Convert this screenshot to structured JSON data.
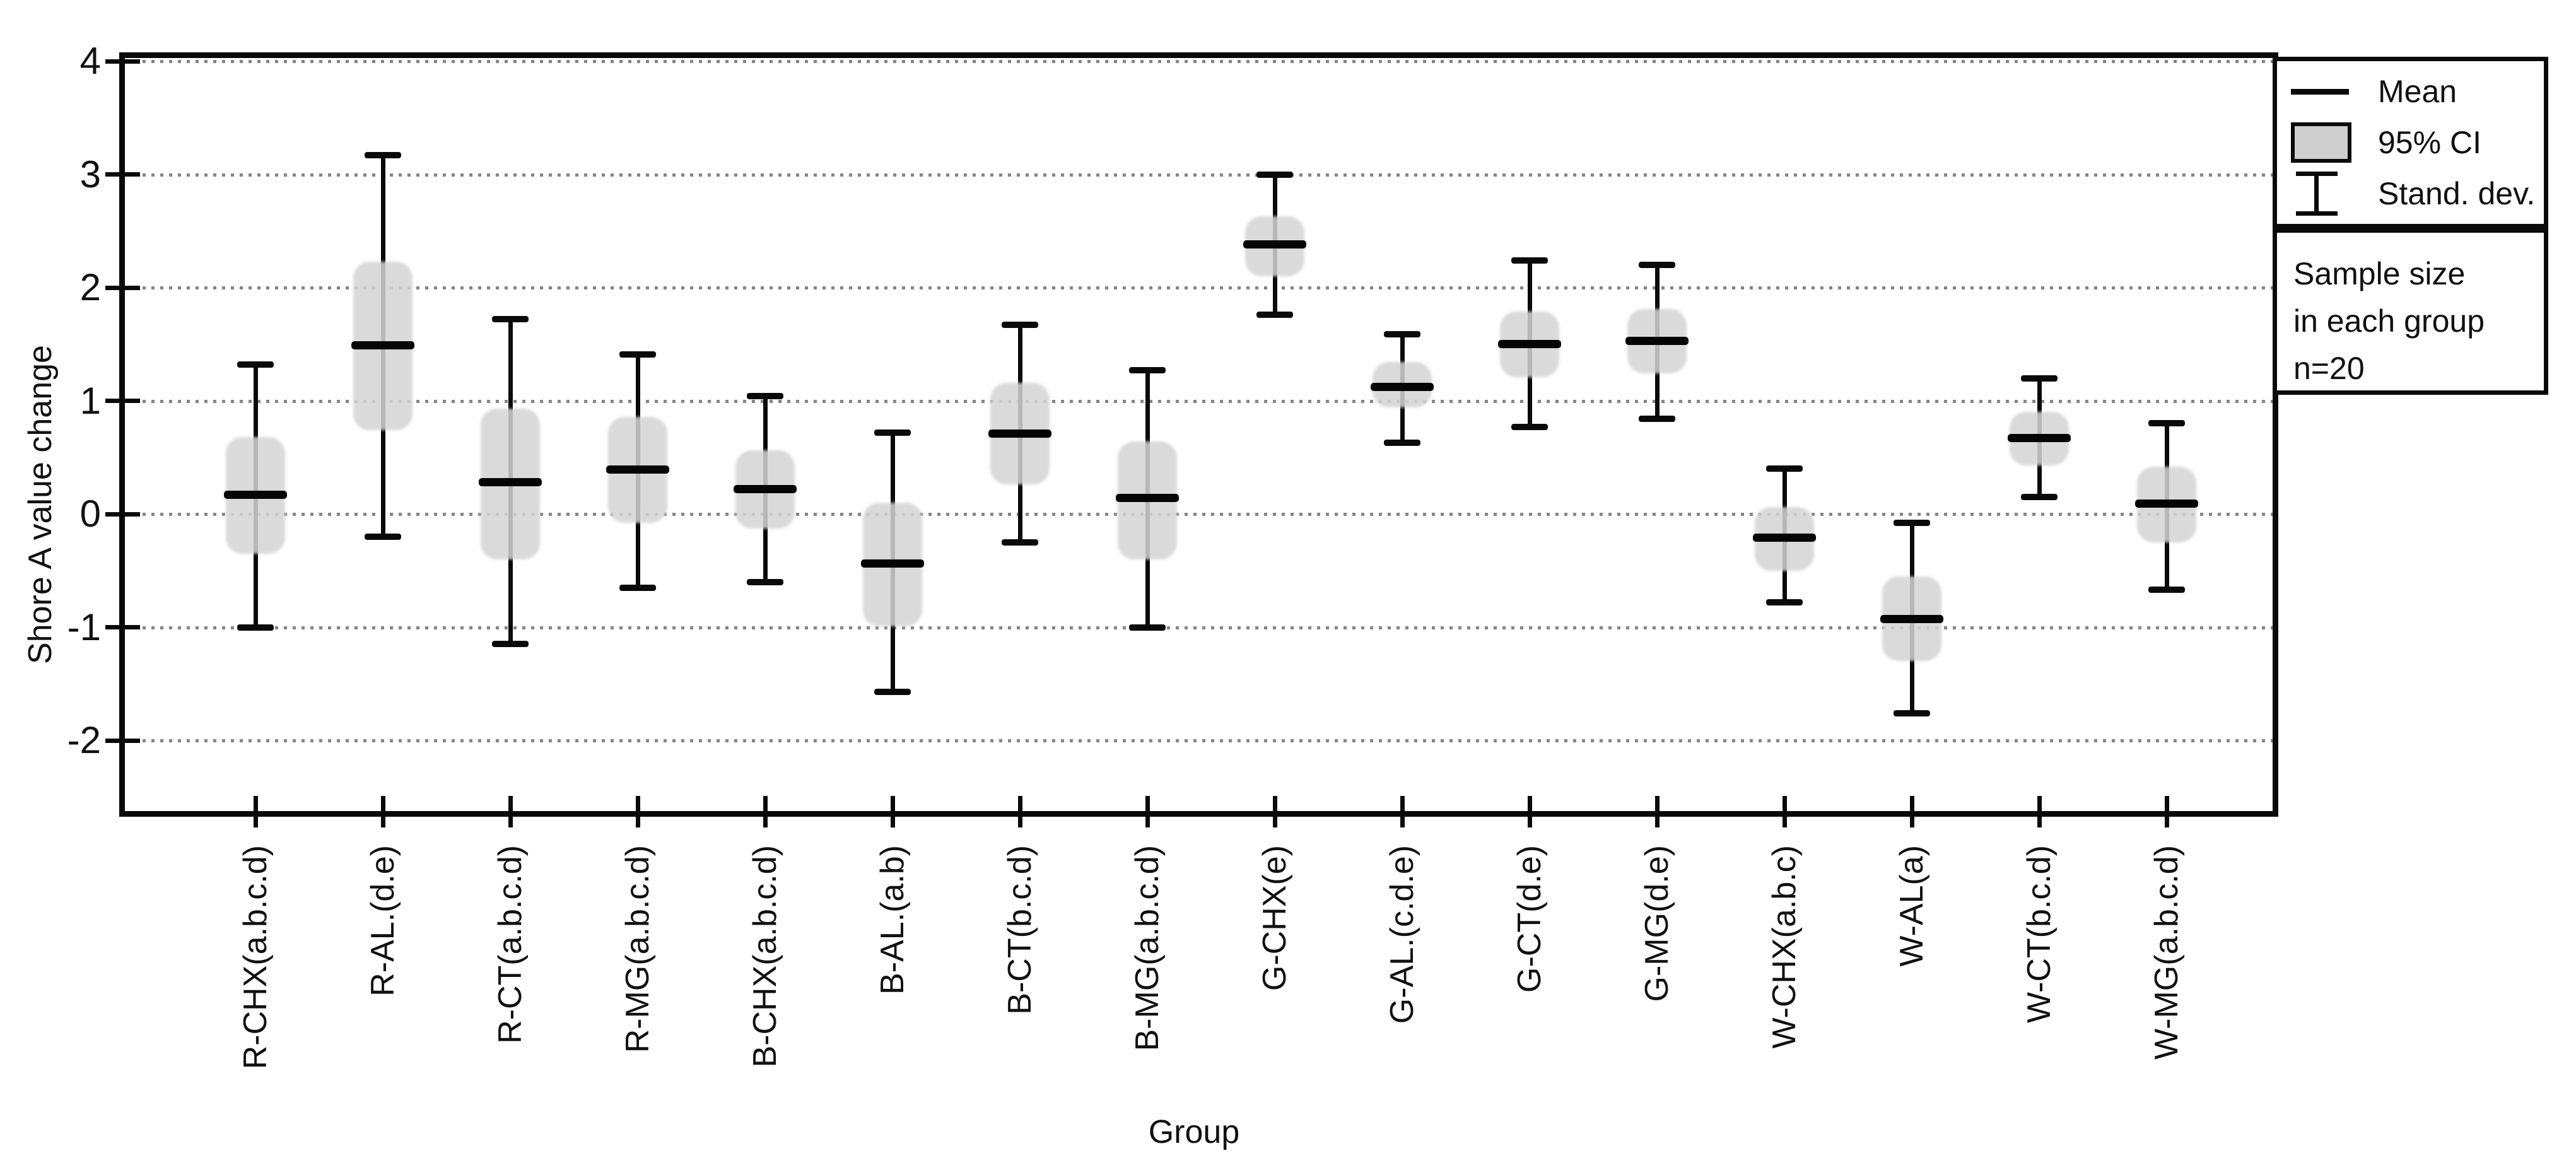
{
  "figure": {
    "background": "#ffffff",
    "ink_color": "#0a0a0a",
    "grid_color": "#858585",
    "ci_fill_color": "#d4d4d4"
  },
  "y_axis": {
    "title": "Shore A value change"
  },
  "x_axis": {
    "title": "Group"
  },
  "legend": {
    "items": [
      {
        "label": "Mean",
        "swatch": "mean-line"
      },
      {
        "label": "95% CI",
        "swatch": "ci-box"
      },
      {
        "label": "Stand. dev.",
        "swatch": "sd-ibeam"
      }
    ]
  },
  "sample_note": {
    "lines": [
      "Sample size",
      "in each group",
      "n=20"
    ]
  },
  "chart_data": {
    "type": "scatter",
    "variant": "mean-95ci-stddev-errorbar",
    "title": "",
    "xlabel": "Group",
    "ylabel": "Shore A value change",
    "ylim": [
      -2.72,
      4.06
    ],
    "yticks": [
      4,
      3,
      2,
      1,
      0,
      -1,
      -2
    ],
    "grid": "horizontal-dotted",
    "legend_position": "outside-top-right",
    "sample_size_per_group": 20,
    "categories": [
      "R-CHX(a.b.c.d)",
      "R-AL.(d.e)",
      "R-CT(a.b.c.d)",
      "R-MG(a.b.c.d)",
      "B-CHX(a.b.c.d)",
      "B-AL.(a.b)",
      "B-CT(b.c.d)",
      "B-MG(a.b.c.d)",
      "G-CHX(e)",
      "G-AL.(c.d.e)",
      "G-CT(d.e)",
      "G-MG(d.e)",
      "W-CHX(a.b.c)",
      "W-AL(a)",
      "W-CT(b.c.d)",
      "W-MG(a.b.c.d)"
    ],
    "groups": [
      {
        "label": "R-CHX(a.b.c.d)",
        "mean": 0.17,
        "ci95": [
          -0.35,
          0.68
        ],
        "sd": [
          -1.0,
          1.32
        ]
      },
      {
        "label": "R-AL.(d.e)",
        "mean": 1.49,
        "ci95": [
          0.74,
          2.23
        ],
        "sd": [
          -0.2,
          3.17
        ]
      },
      {
        "label": "R-CT(a.b.c.d)",
        "mean": 0.28,
        "ci95": [
          -0.4,
          0.93
        ],
        "sd": [
          -1.15,
          1.72
        ]
      },
      {
        "label": "R-MG(a.b.c.d)",
        "mean": 0.39,
        "ci95": [
          -0.08,
          0.86
        ],
        "sd": [
          -0.65,
          1.41
        ]
      },
      {
        "label": "B-CHX(a.b.c.d)",
        "mean": 0.22,
        "ci95": [
          -0.13,
          0.56
        ],
        "sd": [
          -0.6,
          1.04
        ]
      },
      {
        "label": "B-AL.(a.b)",
        "mean": -0.44,
        "ci95": [
          -0.99,
          0.1
        ],
        "sd": [
          -1.57,
          0.72
        ]
      },
      {
        "label": "B-CT(b.c.d)",
        "mean": 0.71,
        "ci95": [
          0.26,
          1.16
        ],
        "sd": [
          -0.25,
          1.67
        ]
      },
      {
        "label": "B-MG(a.b.c.d)",
        "mean": 0.14,
        "ci95": [
          -0.4,
          0.64
        ],
        "sd": [
          -1.0,
          1.27
        ]
      },
      {
        "label": "G-CHX(e)",
        "mean": 2.38,
        "ci95": [
          2.1,
          2.63
        ],
        "sd": [
          1.76,
          3.0
        ]
      },
      {
        "label": "G-AL.(c.d.e)",
        "mean": 1.12,
        "ci95": [
          0.94,
          1.34
        ],
        "sd": [
          0.63,
          1.59
        ]
      },
      {
        "label": "G-CT(d.e)",
        "mean": 1.5,
        "ci95": [
          1.21,
          1.79
        ],
        "sd": [
          0.77,
          2.24
        ]
      },
      {
        "label": "G-MG(d.e)",
        "mean": 1.53,
        "ci95": [
          1.24,
          1.81
        ],
        "sd": [
          0.84,
          2.2
        ]
      },
      {
        "label": "W-CHX(a.b.c)",
        "mean": -0.21,
        "ci95": [
          -0.5,
          0.06
        ],
        "sd": [
          -0.78,
          0.4
        ]
      },
      {
        "label": "W-AL(a)",
        "mean": -0.93,
        "ci95": [
          -1.3,
          -0.55
        ],
        "sd": [
          -1.76,
          -0.08
        ]
      },
      {
        "label": "W-CT(b.c.d)",
        "mean": 0.67,
        "ci95": [
          0.43,
          0.9
        ],
        "sd": [
          0.15,
          1.2
        ]
      },
      {
        "label": "W-MG(a.b.c.d)",
        "mean": 0.09,
        "ci95": [
          -0.25,
          0.42
        ],
        "sd": [
          -0.67,
          0.8
        ]
      }
    ]
  }
}
